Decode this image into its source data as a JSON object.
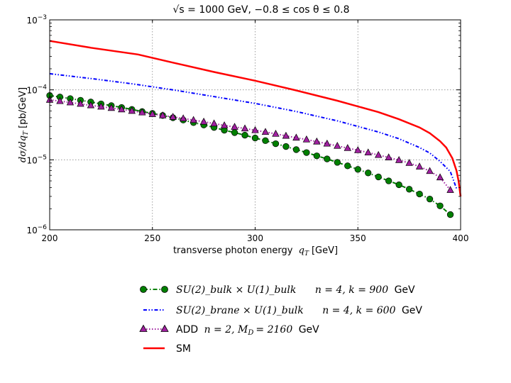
{
  "chart_data": {
    "type": "line",
    "title": "√s = 1000 GeV, −0.8 ≤ cos θ ≤ 0.8",
    "xlabel": "transverse photon energy q_T [GeV]",
    "xlabel_text": "transverse photon energy",
    "xlabel_var": "q",
    "xlabel_sub": "T",
    "xlabel_unit": "[GeV]",
    "ylabel": "dσ/dq_T [pb/GeV]",
    "ylabel_math": "dσ/dq",
    "ylabel_sub": "T",
    "ylabel_unit": "[pb/GeV]",
    "xlim": [
      200,
      400
    ],
    "ylim": [
      1e-06,
      0.001
    ],
    "yscale": "log",
    "xticks": [
      200,
      250,
      300,
      350,
      400
    ],
    "yticks": [
      {
        "value": 1e-06,
        "base": "10",
        "exp": "−6"
      },
      {
        "value": 1e-05,
        "base": "10",
        "exp": "−5"
      },
      {
        "value": 0.0001,
        "base": "10",
        "exp": "−4"
      },
      {
        "value": 0.001,
        "base": "10",
        "exp": "−3"
      }
    ],
    "grid": true,
    "legend_position": "below",
    "series": [
      {
        "name": "SU(2)_bulk × U(1)_bulk   n = 4, k = 900 GeV",
        "legend_math": "SU(2)_bulk × U(1)_bulk",
        "legend_params": "n = 4, k = 900",
        "legend_unit": "GeV",
        "color": "#008000",
        "edgecolor": "#000000",
        "marker": "circle",
        "linestyle": "dashdot",
        "x": [
          200,
          205,
          210,
          215,
          220,
          225,
          230,
          235,
          240,
          245,
          250,
          255,
          260,
          265,
          270,
          275,
          280,
          285,
          290,
          295,
          300,
          305,
          310,
          315,
          320,
          325,
          330,
          335,
          340,
          345,
          350,
          355,
          360,
          365,
          370,
          375,
          380,
          385,
          390,
          395
        ],
        "y": [
          8.3e-05,
          7.9e-05,
          7.5e-05,
          7.1e-05,
          6.7e-05,
          6.3e-05,
          5.95e-05,
          5.6e-05,
          5.25e-05,
          4.9e-05,
          4.6e-05,
          4.3e-05,
          4e-05,
          3.7e-05,
          3.4e-05,
          3.15e-05,
          2.9e-05,
          2.65e-05,
          2.45e-05,
          2.25e-05,
          2.05e-05,
          1.88e-05,
          1.7e-05,
          1.55e-05,
          1.4e-05,
          1.27e-05,
          1.14e-05,
          1.03e-05,
          9.2e-06,
          8.2e-06,
          7.3e-06,
          6.5e-06,
          5.7e-06,
          5e-06,
          4.4e-06,
          3.8e-06,
          3.25e-06,
          2.75e-06,
          2.2e-06,
          1.65e-06
        ]
      },
      {
        "name": "SU(2)_brane × U(1)_bulk   n = 4, k = 600 GeV",
        "legend_math": "SU(2)_brane × U(1)_bulk",
        "legend_params": "n = 4, k = 600",
        "legend_unit": "GeV",
        "color": "#0000ff",
        "marker": "none",
        "linestyle": "dashdotdot",
        "x": [
          200,
          220,
          240,
          260,
          280,
          300,
          320,
          340,
          360,
          370,
          380,
          385,
          390,
          395,
          398
        ],
        "y": [
          0.00017,
          0.000145,
          0.000122,
          0.0001,
          8e-05,
          6.4e-05,
          4.9e-05,
          3.6e-05,
          2.5e-05,
          2e-05,
          1.5e-05,
          1.25e-05,
          9.5e-06,
          6.8e-06,
          3.9e-06
        ]
      },
      {
        "name": "ADD n = 2, M_D = 2160 GeV",
        "legend_label": "ADD",
        "legend_params": "n = 2, M",
        "legend_sub": "D",
        "legend_value": "= 2160",
        "legend_unit": "GeV",
        "color": "#a020a0",
        "edgecolor": "#000000",
        "marker": "triangle",
        "linestyle": "dotted",
        "x": [
          200,
          205,
          210,
          215,
          220,
          225,
          230,
          235,
          240,
          245,
          250,
          255,
          260,
          265,
          270,
          275,
          280,
          285,
          290,
          295,
          300,
          305,
          310,
          315,
          320,
          325,
          330,
          335,
          340,
          345,
          350,
          355,
          360,
          365,
          370,
          375,
          380,
          385,
          390,
          395
        ],
        "y": [
          7.2e-05,
          6.9e-05,
          6.6e-05,
          6.3e-05,
          6e-05,
          5.75e-05,
          5.5e-05,
          5.25e-05,
          5e-05,
          4.75e-05,
          4.5e-05,
          4.3e-05,
          4.1e-05,
          3.9e-05,
          3.7e-05,
          3.5e-05,
          3.3e-05,
          3.1e-05,
          2.95e-05,
          2.8e-05,
          2.65e-05,
          2.5e-05,
          2.35e-05,
          2.2e-05,
          2.07e-05,
          1.95e-05,
          1.82e-05,
          1.7e-05,
          1.58e-05,
          1.47e-05,
          1.37e-05,
          1.27e-05,
          1.17e-05,
          1.08e-05,
          9.9e-06,
          9e-06,
          8e-06,
          6.9e-06,
          5.6e-06,
          3.7e-06
        ]
      },
      {
        "name": "SM",
        "legend_label": "SM",
        "color": "#ff0000",
        "marker": "none",
        "linestyle": "solid",
        "x": [
          200,
          220,
          243,
          260,
          280,
          300,
          320,
          340,
          360,
          370,
          380,
          385,
          390,
          393,
          396,
          398,
          399,
          400
        ],
        "y": [
          0.0005,
          0.0004,
          0.00032,
          0.000245,
          0.00018,
          0.000135,
          9.8e-05,
          7e-05,
          4.8e-05,
          3.8e-05,
          2.9e-05,
          2.4e-05,
          1.85e-05,
          1.5e-05,
          1.05e-05,
          7e-06,
          5e-06,
          3e-06
        ]
      }
    ]
  }
}
